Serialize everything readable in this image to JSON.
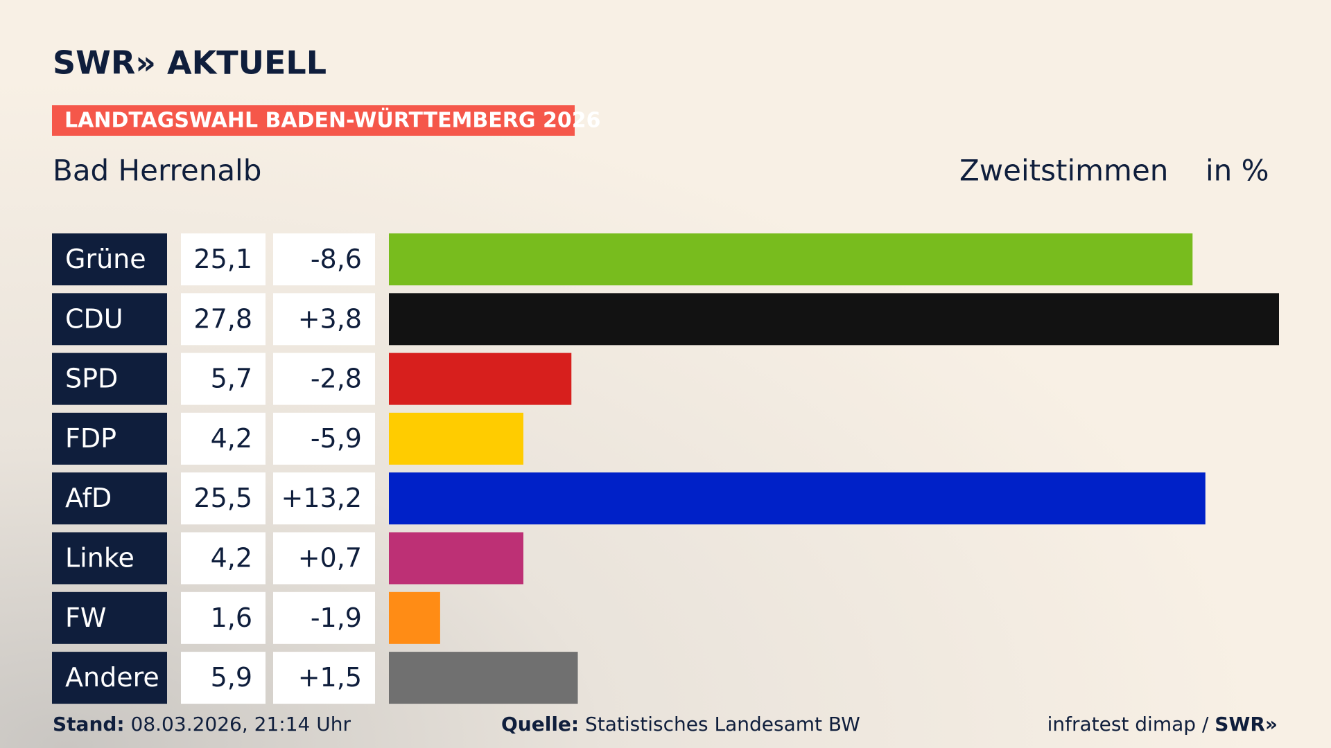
{
  "header": {
    "logo": "SWR» AKTUELL",
    "banner": "LANDTAGSWAHL BADEN-WÜRTTEMBERG 2026",
    "location": "Bad Herrenalb",
    "measure": "Zweitstimmen",
    "unit": "in %"
  },
  "chart_data": {
    "type": "bar",
    "orientation": "horizontal",
    "categories": [
      "Grüne",
      "CDU",
      "SPD",
      "FDP",
      "AfD",
      "Linke",
      "FW",
      "Andere"
    ],
    "values": [
      25.1,
      27.8,
      5.7,
      4.2,
      25.5,
      4.2,
      1.6,
      5.9
    ],
    "value_labels": [
      "25,1",
      "27,8",
      "5,7",
      "4,2",
      "25,5",
      "4,2",
      "1,6",
      "5,9"
    ],
    "changes": [
      -8.6,
      3.8,
      -2.8,
      -5.9,
      13.2,
      0.7,
      -1.9,
      1.5
    ],
    "change_labels": [
      "-8,6",
      "+3,8",
      "-2,8",
      "-5,9",
      "+13,2",
      "+0,7",
      "-1,9",
      "+1,5"
    ],
    "colors": [
      "#78bc1e",
      "#121212",
      "#d71f1d",
      "#ffcc00",
      "#0021c8",
      "#bd3075",
      "#ff8c15",
      "#707070"
    ]
  },
  "footer": {
    "stand_label": "Stand:",
    "stand": "08.03.2026, 21:14 Uhr",
    "source_label": "Quelle:",
    "source": "Statistisches Landesamt BW",
    "credit": "infratest dimap /",
    "credit_logo": "SWR»"
  }
}
